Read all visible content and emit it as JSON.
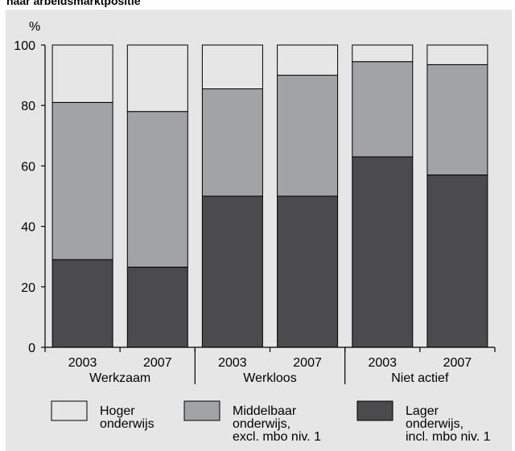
{
  "title": "naar arbeidsmarktpositie",
  "chart_data": {
    "type": "bar",
    "stacked": true,
    "unit": "%",
    "ylim": [
      0,
      100
    ],
    "yticks": [
      0,
      20,
      40,
      60,
      80,
      100
    ],
    "grid": false,
    "categories": [
      "2003",
      "2007",
      "2003",
      "2007",
      "2003",
      "2007"
    ],
    "groups": [
      {
        "label": "Werkzaam",
        "span": [
          0,
          1
        ]
      },
      {
        "label": "Werkloos",
        "span": [
          2,
          3
        ]
      },
      {
        "label": "Niet actief",
        "span": [
          4,
          5
        ]
      }
    ],
    "series": [
      {
        "name": "Lager onderwijs, incl. mbo niv. 1",
        "legend_lines": [
          "Lager",
          "onderwijs,",
          "incl. mbo niv. 1"
        ],
        "color": "#4b4b4d",
        "values": [
          29,
          26.5,
          50,
          50,
          63,
          57
        ]
      },
      {
        "name": "Middelbaar onderwijs, excl. mbo niv. 1",
        "legend_lines": [
          "Middelbaar",
          "onderwijs,",
          "excl. mbo niv. 1"
        ],
        "color": "#a2a3a5",
        "values": [
          52,
          51.5,
          35.5,
          40,
          31.5,
          36.5
        ]
      },
      {
        "name": "Hoger onderwijs",
        "legend_lines": [
          "Hoger",
          "onderwijs"
        ],
        "color": "#e6e6e7",
        "values": [
          19,
          22,
          14.5,
          10,
          5.5,
          6.5
        ]
      }
    ],
    "legend_order": [
      2,
      1,
      0
    ],
    "colors": {
      "panel_background": "#e6e6e7",
      "plot_background": "#e6e6e7",
      "axis": "#000000"
    }
  }
}
